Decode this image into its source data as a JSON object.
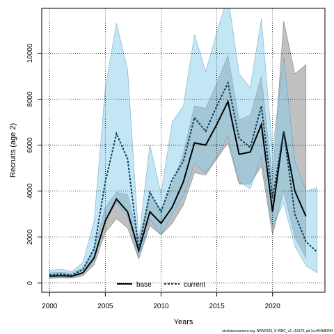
{
  "chart_data": {
    "type": "line",
    "xlabel": "Years",
    "ylabel": "Recruits (age 2)",
    "xlim": [
      1999.3,
      2024.7
    ],
    "ylim": [
      -400,
      11950
    ],
    "x_ticks": [
      2000,
      2005,
      2010,
      2015,
      2020
    ],
    "x_tick_labels": [
      "2000",
      "2005",
      "2010",
      "2015",
      "2020"
    ],
    "y_ticks": [
      0,
      2000,
      4000,
      6000,
      8000,
      10000
    ],
    "y_tick_labels": [
      "0",
      "2000",
      "4000",
      "6000",
      "8000",
      "10000"
    ],
    "grid": true,
    "legend_position": "bottom-center",
    "footer": "stockassessment.org, NWWG25_S-WBC_v2, r19176, git:1cc464b8066f",
    "series": [
      {
        "name": "base",
        "line_color": "#000000",
        "band_color": "#8c8c8c",
        "line_style": "solid",
        "x": [
          2000,
          2001,
          2002,
          2003,
          2004,
          2005,
          2006,
          2007,
          2008,
          2009,
          2010,
          2011,
          2012,
          2013,
          2014,
          2015,
          2016,
          2017,
          2018,
          2019,
          2020,
          2021,
          2022,
          2023
        ],
        "values": [
          300,
          320,
          300,
          450,
          1100,
          2700,
          3650,
          3100,
          1400,
          3100,
          2600,
          3300,
          4400,
          6100,
          6000,
          6900,
          7900,
          5600,
          5700,
          6900,
          3100,
          6600,
          4000,
          2900
        ],
        "lower": [
          200,
          230,
          210,
          320,
          800,
          2200,
          2800,
          2400,
          1050,
          2500,
          2100,
          2600,
          3400,
          4800,
          4700,
          5400,
          6100,
          4300,
          4300,
          5100,
          2100,
          4000,
          2000,
          1100
        ],
        "upper": [
          450,
          460,
          440,
          650,
          1500,
          3300,
          3950,
          3850,
          1850,
          3850,
          3200,
          4250,
          5650,
          7700,
          7600,
          8700,
          9900,
          7100,
          7300,
          9000,
          4500,
          11400,
          9100,
          9500
        ]
      },
      {
        "name": "current",
        "line_color": "#0b3a5e",
        "band_color": "#87ceeb",
        "line_style": "dashed",
        "x": [
          2000,
          2001,
          2002,
          2003,
          2004,
          2005,
          2006,
          2007,
          2008,
          2009,
          2010,
          2011,
          2012,
          2013,
          2014,
          2015,
          2016,
          2017,
          2018,
          2019,
          2020,
          2021,
          2022,
          2023,
          2024
        ],
        "values": [
          350,
          390,
          340,
          600,
          1500,
          4400,
          6500,
          5400,
          1450,
          3950,
          3100,
          4500,
          5300,
          7200,
          6600,
          7700,
          8700,
          6300,
          5900,
          7700,
          3700,
          6600,
          3000,
          1800,
          1350
        ],
        "lower": [
          220,
          260,
          240,
          410,
          1000,
          2700,
          3500,
          2900,
          1050,
          2800,
          2100,
          3000,
          3800,
          5200,
          4800,
          5500,
          6400,
          4400,
          4100,
          5500,
          2500,
          3500,
          1600,
          750,
          450
        ],
        "upper": [
          550,
          600,
          500,
          900,
          2700,
          8500,
          11300,
          9300,
          1900,
          6000,
          3900,
          7000,
          7700,
          10800,
          9200,
          10900,
          12500,
          9100,
          8500,
          11500,
          5800,
          9800,
          5300,
          4000,
          4150
        ]
      }
    ]
  }
}
